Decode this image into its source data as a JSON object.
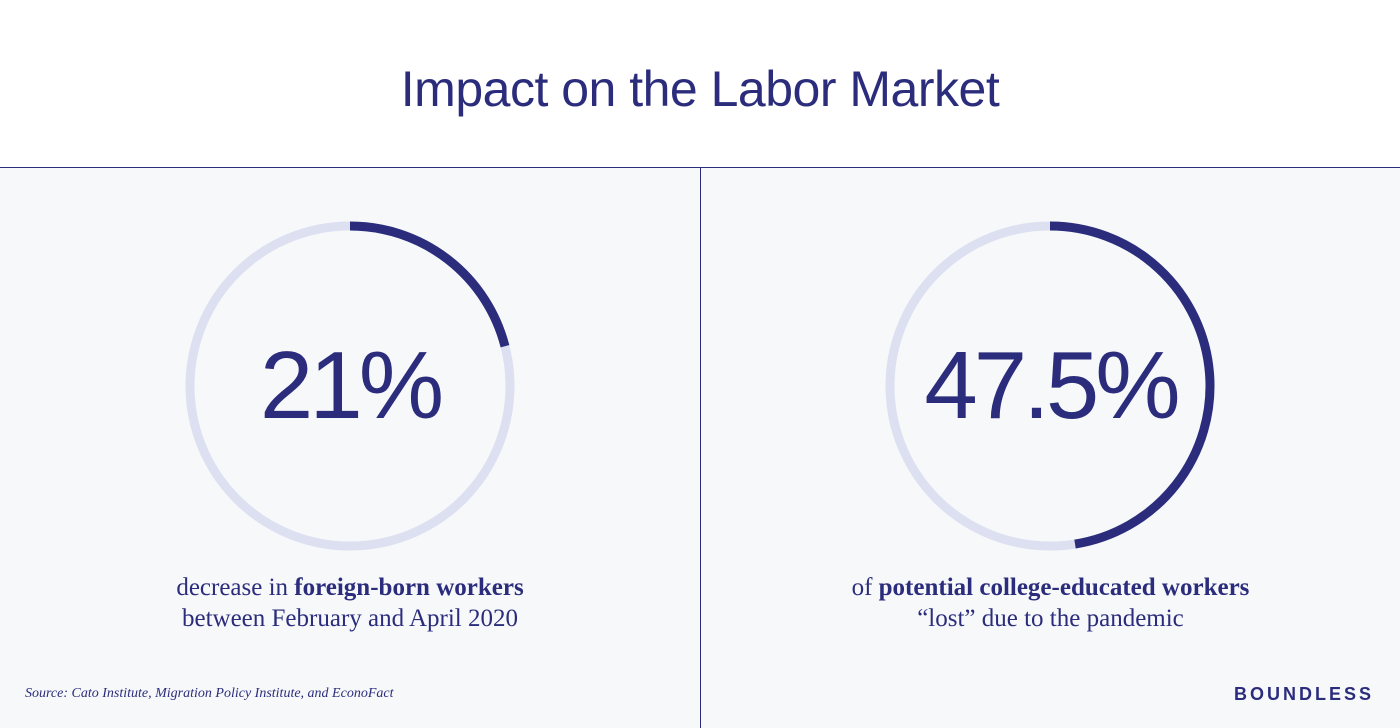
{
  "title": "Impact on the Labor Market",
  "colors": {
    "accent": "#2b2d7c",
    "track": "#dde0f1",
    "panel_bg": "#f7f8fa"
  },
  "chart_data": [
    {
      "type": "pie",
      "style": "progress-ring",
      "value": 21,
      "label": "21%",
      "caption_pre": "decrease in ",
      "caption_bold": "foreign-born workers",
      "caption_line2": "between February and April 2020"
    },
    {
      "type": "pie",
      "style": "progress-ring",
      "value": 47.5,
      "label": "47.5%",
      "caption_pre": "of ",
      "caption_bold": "potential college-educated workers",
      "caption_line2": "“lost” due to the pandemic"
    }
  ],
  "source": "Source: Cato Institute, Migration Policy Institute, and EconoFact",
  "brand": "BOUNDLESS"
}
